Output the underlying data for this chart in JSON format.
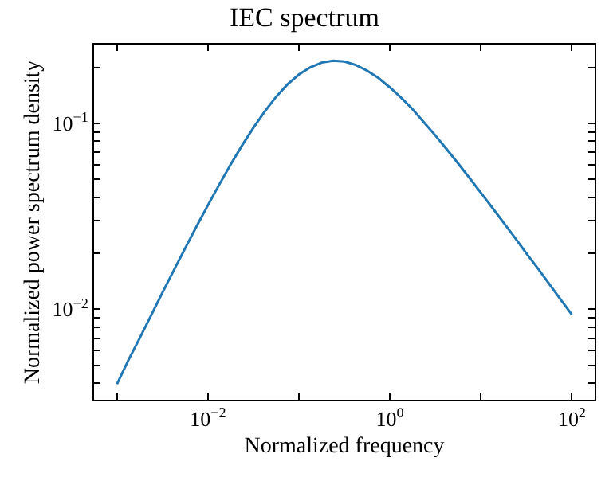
{
  "chart_data": {
    "type": "line",
    "title": "IEC spectrum",
    "xlabel": "Normalized frequency",
    "ylabel": "Normalized power spectrum density",
    "log": "xy",
    "marker": "none",
    "line_style": "solid",
    "xlim": [
      0.00056,
      178
    ],
    "ylim": [
      0.00326,
      0.265
    ],
    "xticks": [
      {
        "value": 0.001,
        "label": null
      },
      {
        "value": 0.01,
        "label": "10$^{−2}$"
      },
      {
        "value": 0.1,
        "label": null
      },
      {
        "value": 1,
        "label": "10$^{0}$"
      },
      {
        "value": 10,
        "label": null
      },
      {
        "value": 100,
        "label": "10$^{2}$"
      }
    ],
    "yticks": [
      {
        "value": 0.004,
        "label": null
      },
      {
        "value": 0.005,
        "label": null
      },
      {
        "value": 0.006,
        "label": null
      },
      {
        "value": 0.007,
        "label": null
      },
      {
        "value": 0.008,
        "label": null
      },
      {
        "value": 0.009,
        "label": null
      },
      {
        "value": 0.01,
        "label": "10$^{−2}$"
      },
      {
        "value": 0.02,
        "label": null
      },
      {
        "value": 0.03,
        "label": null
      },
      {
        "value": 0.04,
        "label": null
      },
      {
        "value": 0.05,
        "label": null
      },
      {
        "value": 0.06,
        "label": null
      },
      {
        "value": 0.07,
        "label": null
      },
      {
        "value": 0.08,
        "label": null
      },
      {
        "value": 0.09,
        "label": null
      },
      {
        "value": 0.1,
        "label": "10$^{−1}$"
      },
      {
        "value": 0.2,
        "label": null
      }
    ],
    "x": [
      0.001,
      0.001334,
      0.001778,
      0.002371,
      0.003162,
      0.004217,
      0.005623,
      0.007499,
      0.01,
      0.01334,
      0.01778,
      0.02371,
      0.03162,
      0.04217,
      0.05623,
      0.07499,
      0.1,
      0.1334,
      0.1778,
      0.2371,
      0.3162,
      0.4217,
      0.5623,
      0.7499,
      1,
      1.334,
      1.778,
      2.371,
      3.162,
      4.217,
      5.623,
      7.499,
      10,
      13.34,
      17.78,
      23.71,
      31.62,
      42.17,
      56.23,
      74.99,
      100
    ],
    "series": [
      {
        "color": "#1f77b4",
        "values": [
          0.00396,
          0.00532,
          0.00699,
          0.00926,
          0.0123,
          0.0162,
          0.0213,
          0.0279,
          0.0363,
          0.0469,
          0.0601,
          0.076,
          0.0947,
          0.116,
          0.139,
          0.162,
          0.183,
          0.2,
          0.212,
          0.217,
          0.215,
          0.206,
          0.192,
          0.175,
          0.156,
          0.137,
          0.119,
          0.101,
          0.086,
          0.0725,
          0.0608,
          0.0508,
          0.0423,
          0.0352,
          0.0292,
          0.0242,
          0.02,
          0.0166,
          0.0137,
          0.0113,
          0.00935
        ]
      }
    ]
  }
}
